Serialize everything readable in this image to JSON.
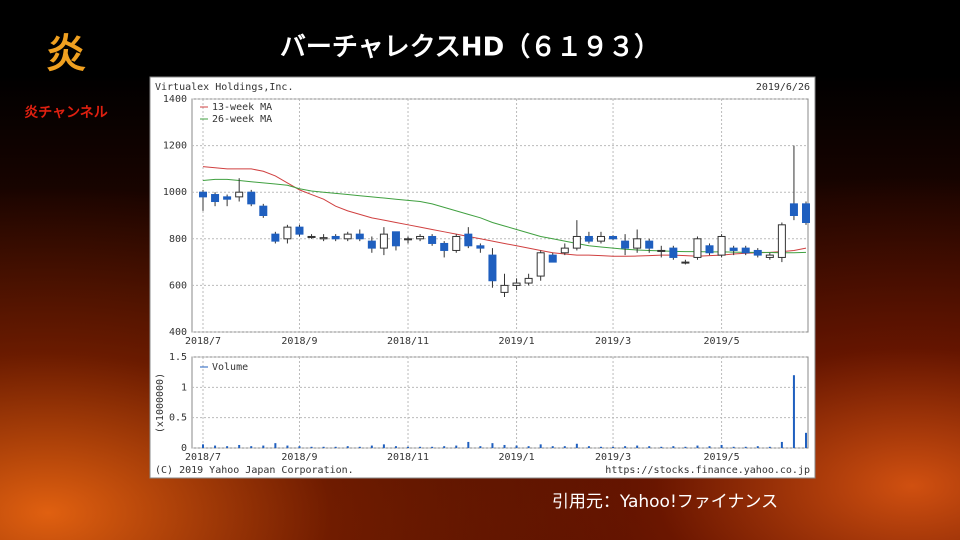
{
  "header": {
    "logo": "炎",
    "channel": "炎チャンネル",
    "title": "バーチャレクスHD（６１９３）"
  },
  "caption": "引用元：Yahoo!ファイナンス",
  "chart_data": [
    {
      "type": "candlestick",
      "title": "Virtualex Holdings,Inc.",
      "date": "2019/6/26",
      "categories": [
        "2018/7",
        null,
        null,
        null,
        null,
        null,
        null,
        null,
        "2018/9",
        null,
        null,
        null,
        null,
        null,
        null,
        null,
        null,
        "2018/11",
        null,
        null,
        null,
        null,
        null,
        null,
        null,
        null,
        "2019/1",
        null,
        null,
        null,
        null,
        null,
        null,
        null,
        "2019/3",
        null,
        null,
        null,
        null,
        null,
        null,
        null,
        null,
        "2019/5",
        null,
        null,
        null,
        null,
        null,
        null,
        null
      ],
      "open": [
        1000,
        990,
        980,
        980,
        1000,
        940,
        820,
        800,
        850,
        810,
        800,
        810,
        800,
        820,
        790,
        760,
        830,
        800,
        800,
        810,
        780,
        750,
        820,
        770,
        730,
        570,
        600,
        610,
        640,
        730,
        740,
        760,
        810,
        790,
        810,
        790,
        760,
        790,
        750,
        760,
        700,
        720,
        770,
        730,
        760,
        760,
        750,
        720,
        720,
        950,
        950
      ],
      "high": [
        1010,
        1000,
        990,
        1060,
        1010,
        950,
        830,
        860,
        860,
        820,
        820,
        820,
        830,
        840,
        810,
        850,
        830,
        810,
        820,
        820,
        790,
        820,
        850,
        780,
        760,
        650,
        630,
        650,
        750,
        740,
        780,
        880,
        830,
        830,
        815,
        820,
        840,
        800,
        770,
        770,
        710,
        810,
        780,
        820,
        770,
        770,
        760,
        740,
        870,
        1200,
        960
      ],
      "low": [
        920,
        940,
        940,
        960,
        940,
        890,
        780,
        780,
        810,
        800,
        790,
        790,
        790,
        790,
        740,
        730,
        750,
        780,
        790,
        770,
        720,
        740,
        760,
        740,
        590,
        550,
        580,
        600,
        620,
        700,
        730,
        750,
        780,
        780,
        795,
        730,
        740,
        740,
        720,
        710,
        690,
        710,
        730,
        720,
        730,
        730,
        720,
        710,
        700,
        880,
        860
      ],
      "close": [
        980,
        960,
        970,
        1000,
        950,
        900,
        790,
        850,
        820,
        810,
        805,
        800,
        820,
        800,
        760,
        820,
        770,
        800,
        810,
        780,
        750,
        810,
        770,
        760,
        620,
        600,
        610,
        630,
        740,
        700,
        760,
        810,
        790,
        810,
        800,
        760,
        800,
        760,
        750,
        720,
        700,
        800,
        740,
        810,
        750,
        740,
        730,
        730,
        860,
        900,
        870
      ],
      "up_color": "#ffffff",
      "down_color": "#1f5fbf",
      "lines": [
        {
          "name": "13-week MA",
          "color": "#d04040",
          "values": [
            1110,
            1105,
            1100,
            1100,
            1100,
            1090,
            1070,
            1040,
            1010,
            990,
            970,
            940,
            920,
            905,
            890,
            880,
            870,
            860,
            850,
            840,
            830,
            820,
            810,
            800,
            790,
            780,
            770,
            760,
            750,
            740,
            735,
            730,
            730,
            728,
            725,
            725,
            726,
            728,
            730,
            730,
            728,
            725,
            728,
            730,
            735,
            738,
            740,
            742,
            745,
            750,
            760
          ]
        },
        {
          "name": "26-week MA",
          "color": "#40a040",
          "values": [
            1050,
            1055,
            1055,
            1050,
            1045,
            1040,
            1035,
            1030,
            1015,
            1005,
            1000,
            995,
            990,
            985,
            980,
            975,
            970,
            965,
            960,
            950,
            935,
            920,
            905,
            890,
            870,
            855,
            840,
            825,
            810,
            800,
            790,
            780,
            770,
            765,
            760,
            755,
            752,
            750,
            748,
            746,
            745,
            745,
            744,
            744,
            743,
            742,
            742,
            741,
            740,
            740,
            742
          ]
        }
      ],
      "ylim": [
        400,
        1400
      ],
      "yticks": [
        400,
        600,
        800,
        1000,
        1200,
        1400
      ],
      "grid": true
    },
    {
      "type": "bar",
      "ylabel": "(x1000000)",
      "copyright": "(C) 2019 Yahoo Japan Corporation.",
      "source": "https://stocks.finance.yahoo.co.jp",
      "categories": [
        "2018/7",
        null,
        null,
        null,
        null,
        null,
        null,
        null,
        "2018/9",
        null,
        null,
        null,
        null,
        null,
        null,
        null,
        null,
        "2018/11",
        null,
        null,
        null,
        null,
        null,
        null,
        null,
        null,
        "2019/1",
        null,
        null,
        null,
        null,
        null,
        null,
        null,
        "2019/3",
        null,
        null,
        null,
        null,
        null,
        null,
        null,
        null,
        "2019/5",
        null,
        null,
        null,
        null,
        null,
        null,
        null
      ],
      "series": [
        {
          "name": "Volume",
          "color": "#1f5fbf",
          "values": [
            0.06,
            0.04,
            0.03,
            0.05,
            0.03,
            0.04,
            0.08,
            0.04,
            0.03,
            0.02,
            0.02,
            0.02,
            0.03,
            0.02,
            0.04,
            0.06,
            0.03,
            0.02,
            0.02,
            0.02,
            0.03,
            0.04,
            0.1,
            0.03,
            0.08,
            0.05,
            0.04,
            0.03,
            0.06,
            0.03,
            0.03,
            0.07,
            0.03,
            0.02,
            0.02,
            0.03,
            0.04,
            0.03,
            0.02,
            0.03,
            0.02,
            0.04,
            0.03,
            0.05,
            0.02,
            0.02,
            0.03,
            0.02,
            0.1,
            1.2,
            0.25
          ]
        }
      ],
      "ylim": [
        0,
        1.5
      ],
      "yticks": [
        0,
        0.5,
        1,
        1.5
      ],
      "grid": true
    }
  ]
}
